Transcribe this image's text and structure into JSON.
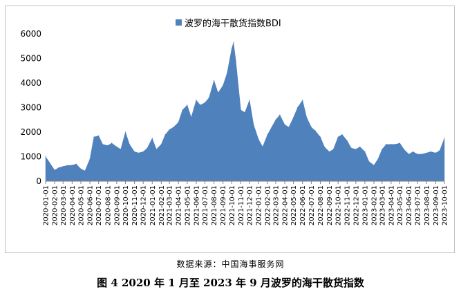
{
  "chart_data": {
    "type": "area",
    "series_name": "波罗的海干散货指数BDI",
    "color": "#4f81bd",
    "ylim": [
      0,
      6000
    ],
    "yticks": [
      0,
      1000,
      2000,
      3000,
      4000,
      5000,
      6000
    ],
    "xticks": [
      "2020-01-01",
      "2020-02-01",
      "2020-03-01",
      "2020-04-01",
      "2020-05-01",
      "2020-06-01",
      "2020-07-01",
      "2020-08-01",
      "2020-09-01",
      "2020-10-01",
      "2020-11-01",
      "2020-12-01",
      "2021-01-01",
      "2021-02-01",
      "2021-03-01",
      "2021-04-01",
      "2021-05-01",
      "2021-06-01",
      "2021-07-01",
      "2021-08-01",
      "2021-09-01",
      "2021-10-01",
      "2021-11-01",
      "2021-12-01",
      "2022-01-01",
      "2022-02-01",
      "2022-03-01",
      "2022-04-01",
      "2022-05-01",
      "2022-06-01",
      "2022-07-01",
      "2022-08-01",
      "2022-09-01",
      "2022-10-01",
      "2022-11-01",
      "2022-12-01",
      "2023-01-01",
      "2023-02-01",
      "2023-03-01",
      "2023-04-01",
      "2023-05-01",
      "2023-06-01",
      "2023-07-01",
      "2023-08-01",
      "2023-09-01",
      "2023-10-01"
    ],
    "x": [
      "2020-01-01",
      "2020-01-15",
      "2020-02-01",
      "2020-02-15",
      "2020-03-01",
      "2020-03-15",
      "2020-04-01",
      "2020-04-15",
      "2020-05-01",
      "2020-05-15",
      "2020-06-01",
      "2020-06-15",
      "2020-07-01",
      "2020-07-15",
      "2020-08-01",
      "2020-08-15",
      "2020-09-01",
      "2020-09-15",
      "2020-10-01",
      "2020-10-15",
      "2020-11-01",
      "2020-11-15",
      "2020-12-01",
      "2020-12-15",
      "2021-01-01",
      "2021-01-15",
      "2021-02-01",
      "2021-02-15",
      "2021-03-01",
      "2021-03-15",
      "2021-04-01",
      "2021-04-15",
      "2021-05-01",
      "2021-05-15",
      "2021-06-01",
      "2021-06-15",
      "2021-07-01",
      "2021-07-15",
      "2021-08-01",
      "2021-08-15",
      "2021-09-01",
      "2021-09-15",
      "2021-10-01",
      "2021-10-07",
      "2021-10-15",
      "2021-11-01",
      "2021-11-15",
      "2021-12-01",
      "2021-12-15",
      "2022-01-01",
      "2022-01-15",
      "2022-02-01",
      "2022-02-15",
      "2022-03-01",
      "2022-03-15",
      "2022-04-01",
      "2022-04-15",
      "2022-05-01",
      "2022-05-15",
      "2022-06-01",
      "2022-06-15",
      "2022-07-01",
      "2022-07-15",
      "2022-08-01",
      "2022-08-15",
      "2022-09-01",
      "2022-09-15",
      "2022-10-01",
      "2022-10-15",
      "2022-11-01",
      "2022-11-15",
      "2022-12-01",
      "2022-12-15",
      "2023-01-01",
      "2023-01-15",
      "2023-02-01",
      "2023-02-15",
      "2023-03-01",
      "2023-03-15",
      "2023-04-01",
      "2023-04-15",
      "2023-05-01",
      "2023-05-15",
      "2023-06-01",
      "2023-06-15",
      "2023-07-01",
      "2023-07-15",
      "2023-08-01",
      "2023-08-15",
      "2023-09-01",
      "2023-09-15",
      "2023-10-01"
    ],
    "values": [
      1000,
      750,
      450,
      550,
      600,
      640,
      650,
      700,
      500,
      420,
      900,
      1800,
      1850,
      1500,
      1450,
      1550,
      1400,
      1300,
      2000,
      1500,
      1200,
      1150,
      1200,
      1350,
      1750,
      1300,
      1500,
      1900,
      2100,
      2200,
      2400,
      2900,
      3100,
      2600,
      3300,
      3100,
      3200,
      3400,
      4100,
      3600,
      3900,
      4400,
      5400,
      5650,
      4900,
      2900,
      2800,
      3300,
      2300,
      1700,
      1400,
      1900,
      2200,
      2500,
      2700,
      2300,
      2200,
      2600,
      3000,
      3300,
      2600,
      2200,
      2050,
      1800,
      1400,
      1200,
      1300,
      1800,
      1900,
      1650,
      1350,
      1300,
      1400,
      1200,
      800,
      650,
      900,
      1300,
      1500,
      1500,
      1500,
      1550,
      1300,
      1100,
      1200,
      1100,
      1100,
      1150,
      1200,
      1150,
      1250,
      1750
    ]
  },
  "source_text": "数据来源：中国海事服务网",
  "caption_text": "图 4    2020 年 1 月至 2023 年 9 月波罗的海干散货指数"
}
